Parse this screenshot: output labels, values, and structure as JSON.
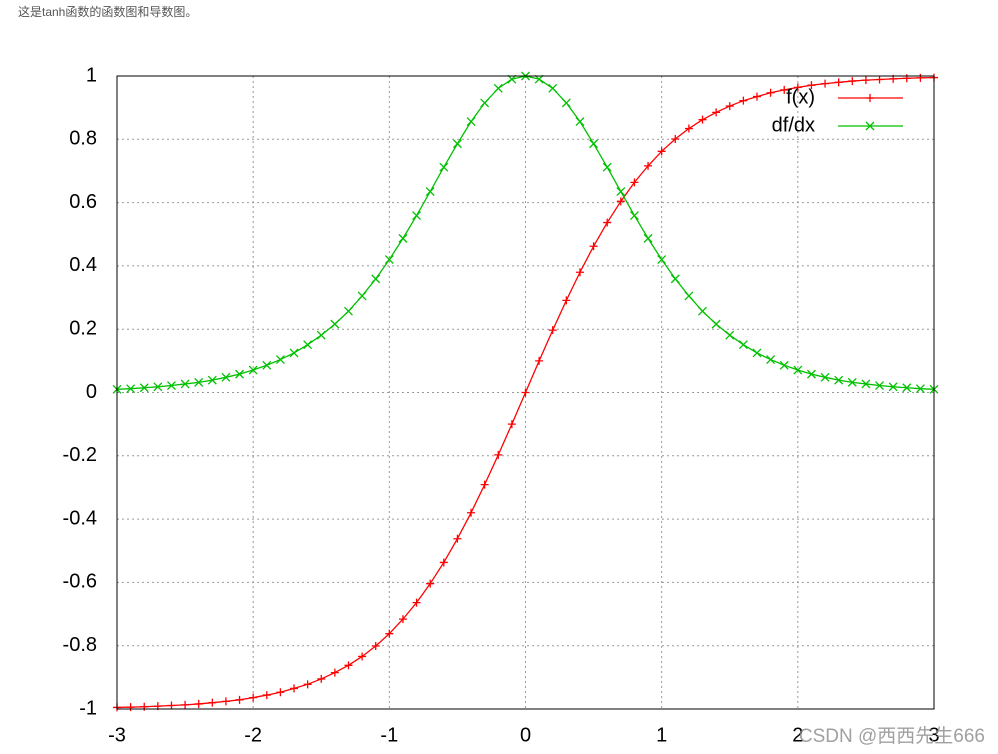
{
  "page": {
    "caption": "这是tanh函数的函数图和导数图。",
    "watermark": "CSDN @西西先生666"
  },
  "chart_data": {
    "type": "line",
    "grid": true,
    "legend": "upper right",
    "xlim": [
      -3,
      3
    ],
    "ylim": [
      -1,
      1
    ],
    "xticks": [
      -3,
      -2,
      -1,
      0,
      1,
      2,
      3
    ],
    "yticks": [
      -1,
      -0.8,
      -0.6,
      -0.4,
      -0.2,
      0,
      0.2,
      0.4,
      0.6,
      0.8,
      1
    ],
    "x": [
      -3,
      -2.9,
      -2.8,
      -2.7,
      -2.6,
      -2.5,
      -2.4,
      -2.3,
      -2.2,
      -2.1,
      -2,
      -1.9,
      -1.8,
      -1.7,
      -1.6,
      -1.5,
      -1.4,
      -1.3,
      -1.2,
      -1.1,
      -1,
      -0.9,
      -0.8,
      -0.7,
      -0.6,
      -0.5,
      -0.4,
      -0.3,
      -0.2,
      -0.1,
      0,
      0.1,
      0.2,
      0.3,
      0.4,
      0.5,
      0.6,
      0.7,
      0.8,
      0.9,
      1,
      1.1,
      1.2,
      1.3,
      1.4,
      1.5,
      1.6,
      1.7,
      1.8,
      1.9,
      2,
      2.1,
      2.2,
      2.3,
      2.4,
      2.5,
      2.6,
      2.7,
      2.8,
      2.9,
      3
    ],
    "series": [
      {
        "name": "f(x)",
        "color": "#ff0000",
        "marker": "+",
        "values": [
          -0.995,
          -0.994,
          -0.993,
          -0.991,
          -0.989,
          -0.987,
          -0.984,
          -0.98,
          -0.976,
          -0.971,
          -0.964,
          -0.956,
          -0.947,
          -0.935,
          -0.922,
          -0.905,
          -0.885,
          -0.862,
          -0.834,
          -0.801,
          -0.762,
          -0.716,
          -0.664,
          -0.604,
          -0.537,
          -0.462,
          -0.38,
          -0.291,
          -0.197,
          -0.1,
          0,
          0.1,
          0.197,
          0.291,
          0.38,
          0.462,
          0.537,
          0.604,
          0.664,
          0.716,
          0.762,
          0.801,
          0.834,
          0.862,
          0.885,
          0.905,
          0.922,
          0.935,
          0.947,
          0.956,
          0.964,
          0.971,
          0.976,
          0.98,
          0.984,
          0.987,
          0.989,
          0.991,
          0.993,
          0.994,
          0.995
        ]
      },
      {
        "name": "df/dx",
        "color": "#00c000",
        "marker": "x",
        "values": [
          0.01,
          0.012,
          0.015,
          0.018,
          0.022,
          0.027,
          0.032,
          0.039,
          0.048,
          0.058,
          0.071,
          0.086,
          0.104,
          0.125,
          0.151,
          0.181,
          0.216,
          0.257,
          0.305,
          0.359,
          0.42,
          0.487,
          0.559,
          0.635,
          0.712,
          0.786,
          0.856,
          0.915,
          0.961,
          0.99,
          1,
          0.99,
          0.961,
          0.915,
          0.856,
          0.786,
          0.712,
          0.635,
          0.559,
          0.487,
          0.42,
          0.359,
          0.305,
          0.257,
          0.216,
          0.181,
          0.151,
          0.125,
          0.104,
          0.086,
          0.071,
          0.058,
          0.048,
          0.039,
          0.032,
          0.027,
          0.022,
          0.018,
          0.015,
          0.012,
          0.01
        ]
      }
    ]
  }
}
